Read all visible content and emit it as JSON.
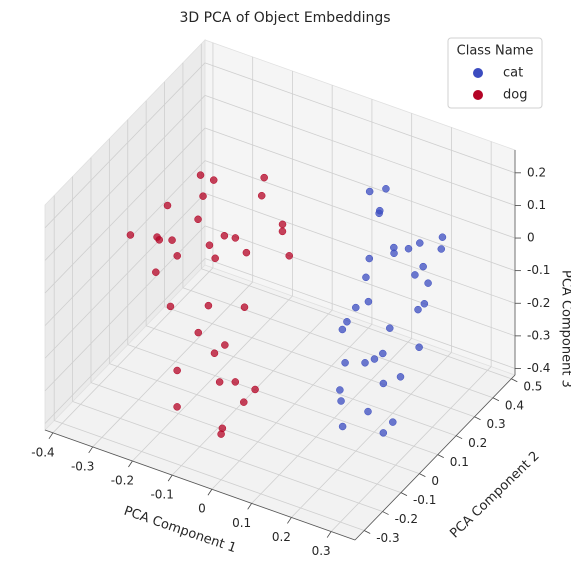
{
  "chart_data": {
    "type": "scatter3d",
    "title": "3D PCA of Object Embeddings",
    "xlabel": "PCA Component 1",
    "ylabel": "PCA Component 2",
    "zlabel": "PCA Component 3",
    "xlim": [
      -0.42,
      0.36
    ],
    "ylim": [
      -0.35,
      0.52
    ],
    "zlim": [
      -0.42,
      0.27
    ],
    "xticks": [
      -0.4,
      -0.3,
      -0.2,
      -0.1,
      0.0,
      0.1,
      0.2,
      0.3
    ],
    "yticks": [
      -0.3,
      -0.2,
      -0.1,
      0.0,
      0.1,
      0.2,
      0.3,
      0.4,
      0.5
    ],
    "zticks": [
      -0.4,
      -0.3,
      -0.2,
      -0.1,
      0.0,
      0.1,
      0.2
    ],
    "grid": true,
    "legend_title": "Class Name",
    "legend_position": "upper right",
    "series": [
      {
        "name": "cat",
        "color": "#3b4cc0",
        "x": [
          0.12,
          0.18,
          0.22,
          0.25,
          0.15,
          0.2,
          0.28,
          0.1,
          0.16,
          0.24,
          0.19,
          0.13,
          0.27,
          0.21,
          0.17,
          0.23,
          0.14,
          0.26,
          0.11,
          0.2,
          0.29,
          0.18,
          0.15,
          0.22,
          0.25,
          0.12,
          0.19,
          0.24,
          0.16,
          0.21,
          0.27,
          0.14,
          0.23,
          0.18,
          0.2
        ],
        "y": [
          0.3,
          0.25,
          0.35,
          0.1,
          0.05,
          0.15,
          0.2,
          0.38,
          0.0,
          0.28,
          -0.05,
          0.22,
          0.32,
          0.08,
          0.12,
          0.4,
          0.18,
          0.02,
          0.27,
          -0.08,
          0.15,
          0.33,
          0.06,
          0.2,
          0.24,
          0.1,
          0.36,
          -0.02,
          0.16,
          0.3,
          0.05,
          0.26,
          0.12,
          0.19,
          0.0
        ],
        "z": [
          0.1,
          0.05,
          -0.1,
          0.15,
          -0.2,
          -0.3,
          -0.05,
          0.12,
          -0.25,
          0.0,
          -0.32,
          -0.12,
          0.08,
          -0.18,
          0.03,
          -0.02,
          -0.28,
          -0.35,
          0.18,
          -0.22,
          -0.15,
          0.0,
          -0.08,
          -0.3,
          0.1,
          -0.14,
          -0.2,
          -0.27,
          0.06,
          -0.05,
          -0.33,
          0.14,
          -0.1,
          -0.24,
          0.02
        ]
      },
      {
        "name": "dog",
        "color": "#b40426",
        "x": [
          -0.32,
          -0.28,
          -0.25,
          -0.3,
          -0.2,
          -0.15,
          -0.22,
          -0.1,
          -0.05,
          -0.35,
          -0.18,
          -0.12,
          -0.08,
          -0.27,
          -0.02,
          0.0,
          -0.14,
          -0.24,
          -0.06,
          -0.33,
          -0.16,
          -0.1,
          -0.2,
          0.02,
          -0.29,
          -0.04,
          -0.12,
          -0.26,
          -0.08,
          -0.18,
          0.03,
          -0.22,
          -0.3,
          -0.14,
          -0.06
        ],
        "y": [
          0.1,
          -0.05,
          0.2,
          0.0,
          0.15,
          -0.1,
          0.05,
          0.25,
          -0.2,
          0.12,
          -0.15,
          0.18,
          0.0,
          0.22,
          -0.25,
          -0.3,
          0.08,
          -0.02,
          0.2,
          -0.08,
          0.28,
          -0.12,
          0.1,
          -0.22,
          0.06,
          0.12,
          -0.28,
          0.15,
          -0.05,
          0.02,
          -0.18,
          -0.1,
          0.25,
          0.14,
          -0.15
        ],
        "z": [
          0.05,
          -0.05,
          0.1,
          0.02,
          -0.02,
          -0.15,
          0.08,
          0.0,
          -0.2,
          -0.08,
          -0.25,
          0.12,
          -0.1,
          -0.12,
          -0.3,
          -0.28,
          0.04,
          0.0,
          -0.05,
          0.06,
          0.1,
          -0.18,
          -0.06,
          -0.22,
          -0.02,
          0.08,
          -0.26,
          0.14,
          -0.3,
          -0.15,
          -0.2,
          -0.1,
          0.0,
          -0.04,
          -0.12
        ]
      }
    ]
  }
}
